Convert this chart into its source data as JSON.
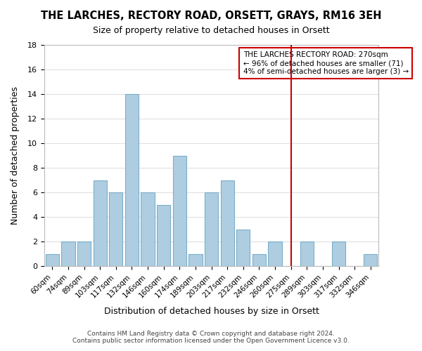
{
  "title": "THE LARCHES, RECTORY ROAD, ORSETT, GRAYS, RM16 3EH",
  "subtitle": "Size of property relative to detached houses in Orsett",
  "xlabel": "Distribution of detached houses by size in Orsett",
  "ylabel": "Number of detached properties",
  "bar_color": "#aecde1",
  "bar_edge_color": "#7aafc8",
  "categories": [
    "60sqm",
    "74sqm",
    "89sqm",
    "103sqm",
    "117sqm",
    "132sqm",
    "146sqm",
    "160sqm",
    "174sqm",
    "189sqm",
    "203sqm",
    "217sqm",
    "232sqm",
    "246sqm",
    "260sqm",
    "275sqm",
    "289sqm",
    "303sqm",
    "317sqm",
    "332sqm",
    "346sqm"
  ],
  "values": [
    1,
    2,
    2,
    7,
    6,
    14,
    6,
    5,
    9,
    1,
    6,
    7,
    3,
    1,
    2,
    0,
    2,
    0,
    2,
    0,
    1
  ],
  "vline_x": 15,
  "vline_color": "#cc0000",
  "ylim": [
    0,
    18
  ],
  "yticks": [
    0,
    2,
    4,
    6,
    8,
    10,
    12,
    14,
    16,
    18
  ],
  "annotation_title": "THE LARCHES RECTORY ROAD: 270sqm",
  "annotation_line1": "← 96% of detached houses are smaller (71)",
  "annotation_line2": "4% of semi-detached houses are larger (3) →",
  "annotation_box_color": "#ffffff",
  "annotation_box_edge_color": "#cc0000",
  "footer1": "Contains HM Land Registry data © Crown copyright and database right 2024.",
  "footer2": "Contains public sector information licensed under the Open Government Licence v3.0.",
  "background_color": "#ffffff",
  "grid_color": "#e0e0e0"
}
